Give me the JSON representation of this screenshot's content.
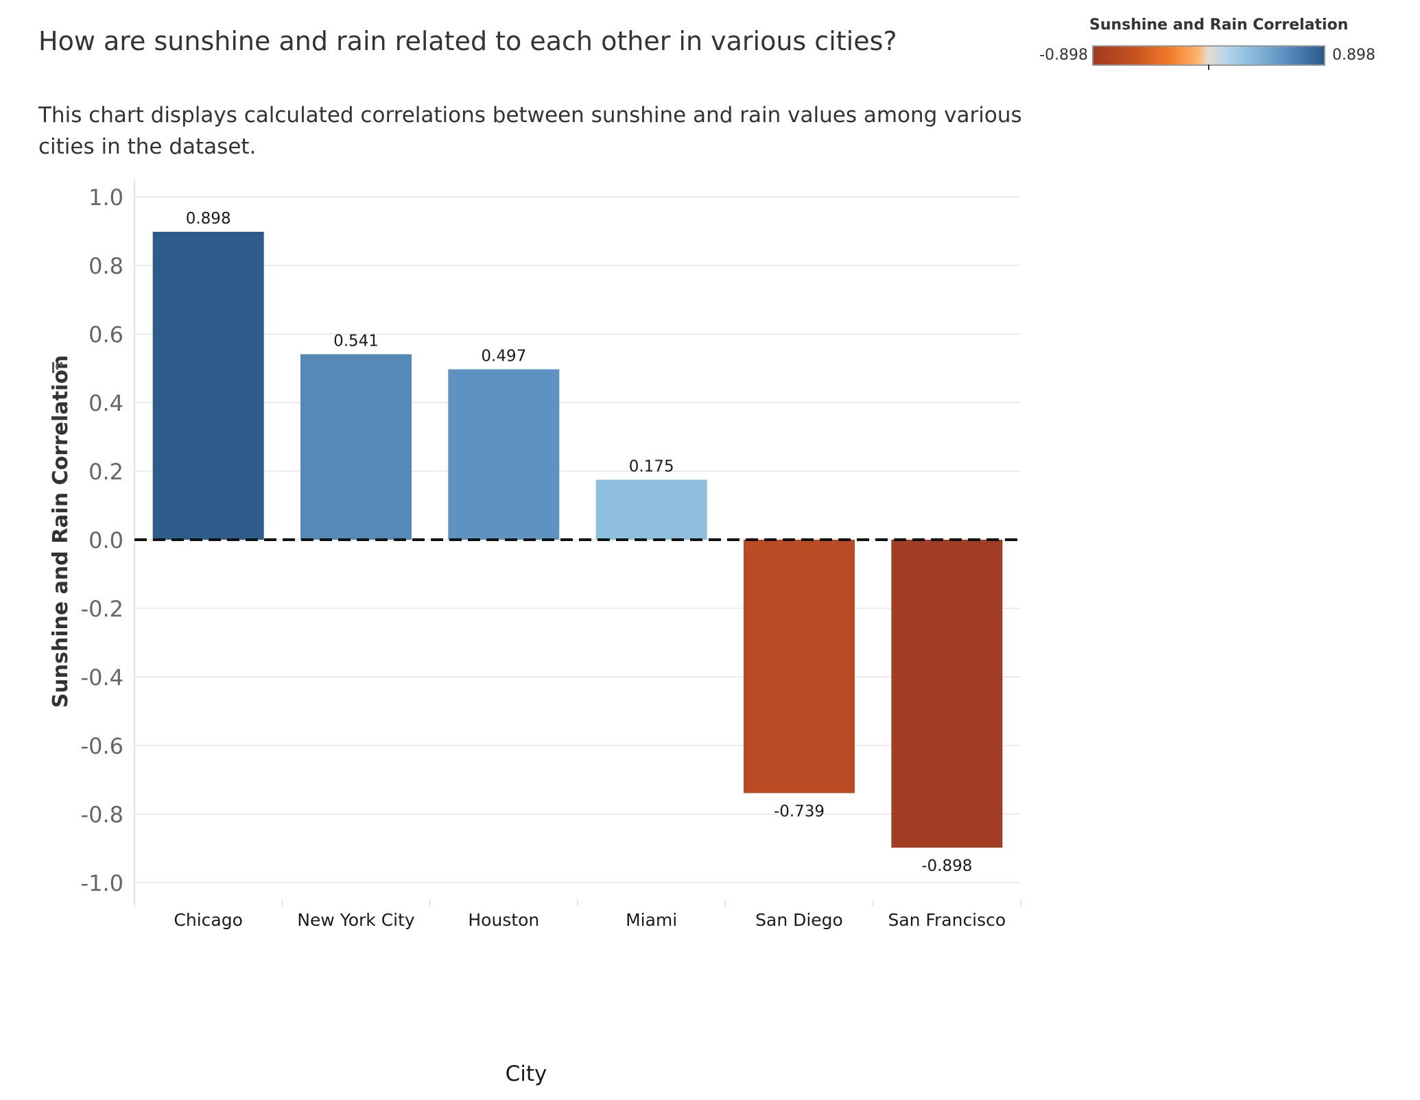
{
  "title": "How are sunshine and rain related to each other in various cities?",
  "subtitle": "This chart displays calculated correlations between sunshine and rain values among various cities in the dataset.",
  "legend": {
    "title": "Sunshine and Rain Correlation",
    "min_label": "-0.898",
    "max_label": "0.898",
    "colors": [
      "#9e3b22",
      "#f07b2a",
      "#e3dcd2",
      "#8cbddd",
      "#2a5a8a"
    ]
  },
  "chart_data": {
    "type": "bar",
    "categories": [
      "Chicago",
      "New York City",
      "Houston",
      "Miami",
      "San Diego",
      "San Francisco"
    ],
    "values": [
      0.898,
      0.541,
      0.497,
      0.175,
      -0.739,
      -0.898
    ],
    "value_labels": [
      "0.898",
      "0.541",
      "0.497",
      "0.175",
      "-0.739",
      "-0.898"
    ],
    "bar_colors": [
      "#2e5c8a",
      "#5789b8",
      "#5e92c0",
      "#8fbfdf",
      "#bb4b25",
      "#a03d23"
    ],
    "xlabel": "City",
    "ylabel": "Sunshine and Rain Correlation",
    "ylim": [
      -1.05,
      1.05
    ],
    "yticks": [
      1.0,
      0.8,
      0.6,
      0.4,
      0.2,
      0.0,
      -0.2,
      -0.4,
      -0.6,
      -0.8,
      -1.0
    ],
    "ytick_labels": [
      "1.0",
      "0.8",
      "0.6",
      "0.4",
      "0.2",
      "0.0",
      "-0.2",
      "-0.4",
      "-0.6",
      "-0.8",
      "-1.0"
    ],
    "reference_line": 0.0,
    "grid": true,
    "legend_position": "top-right"
  }
}
